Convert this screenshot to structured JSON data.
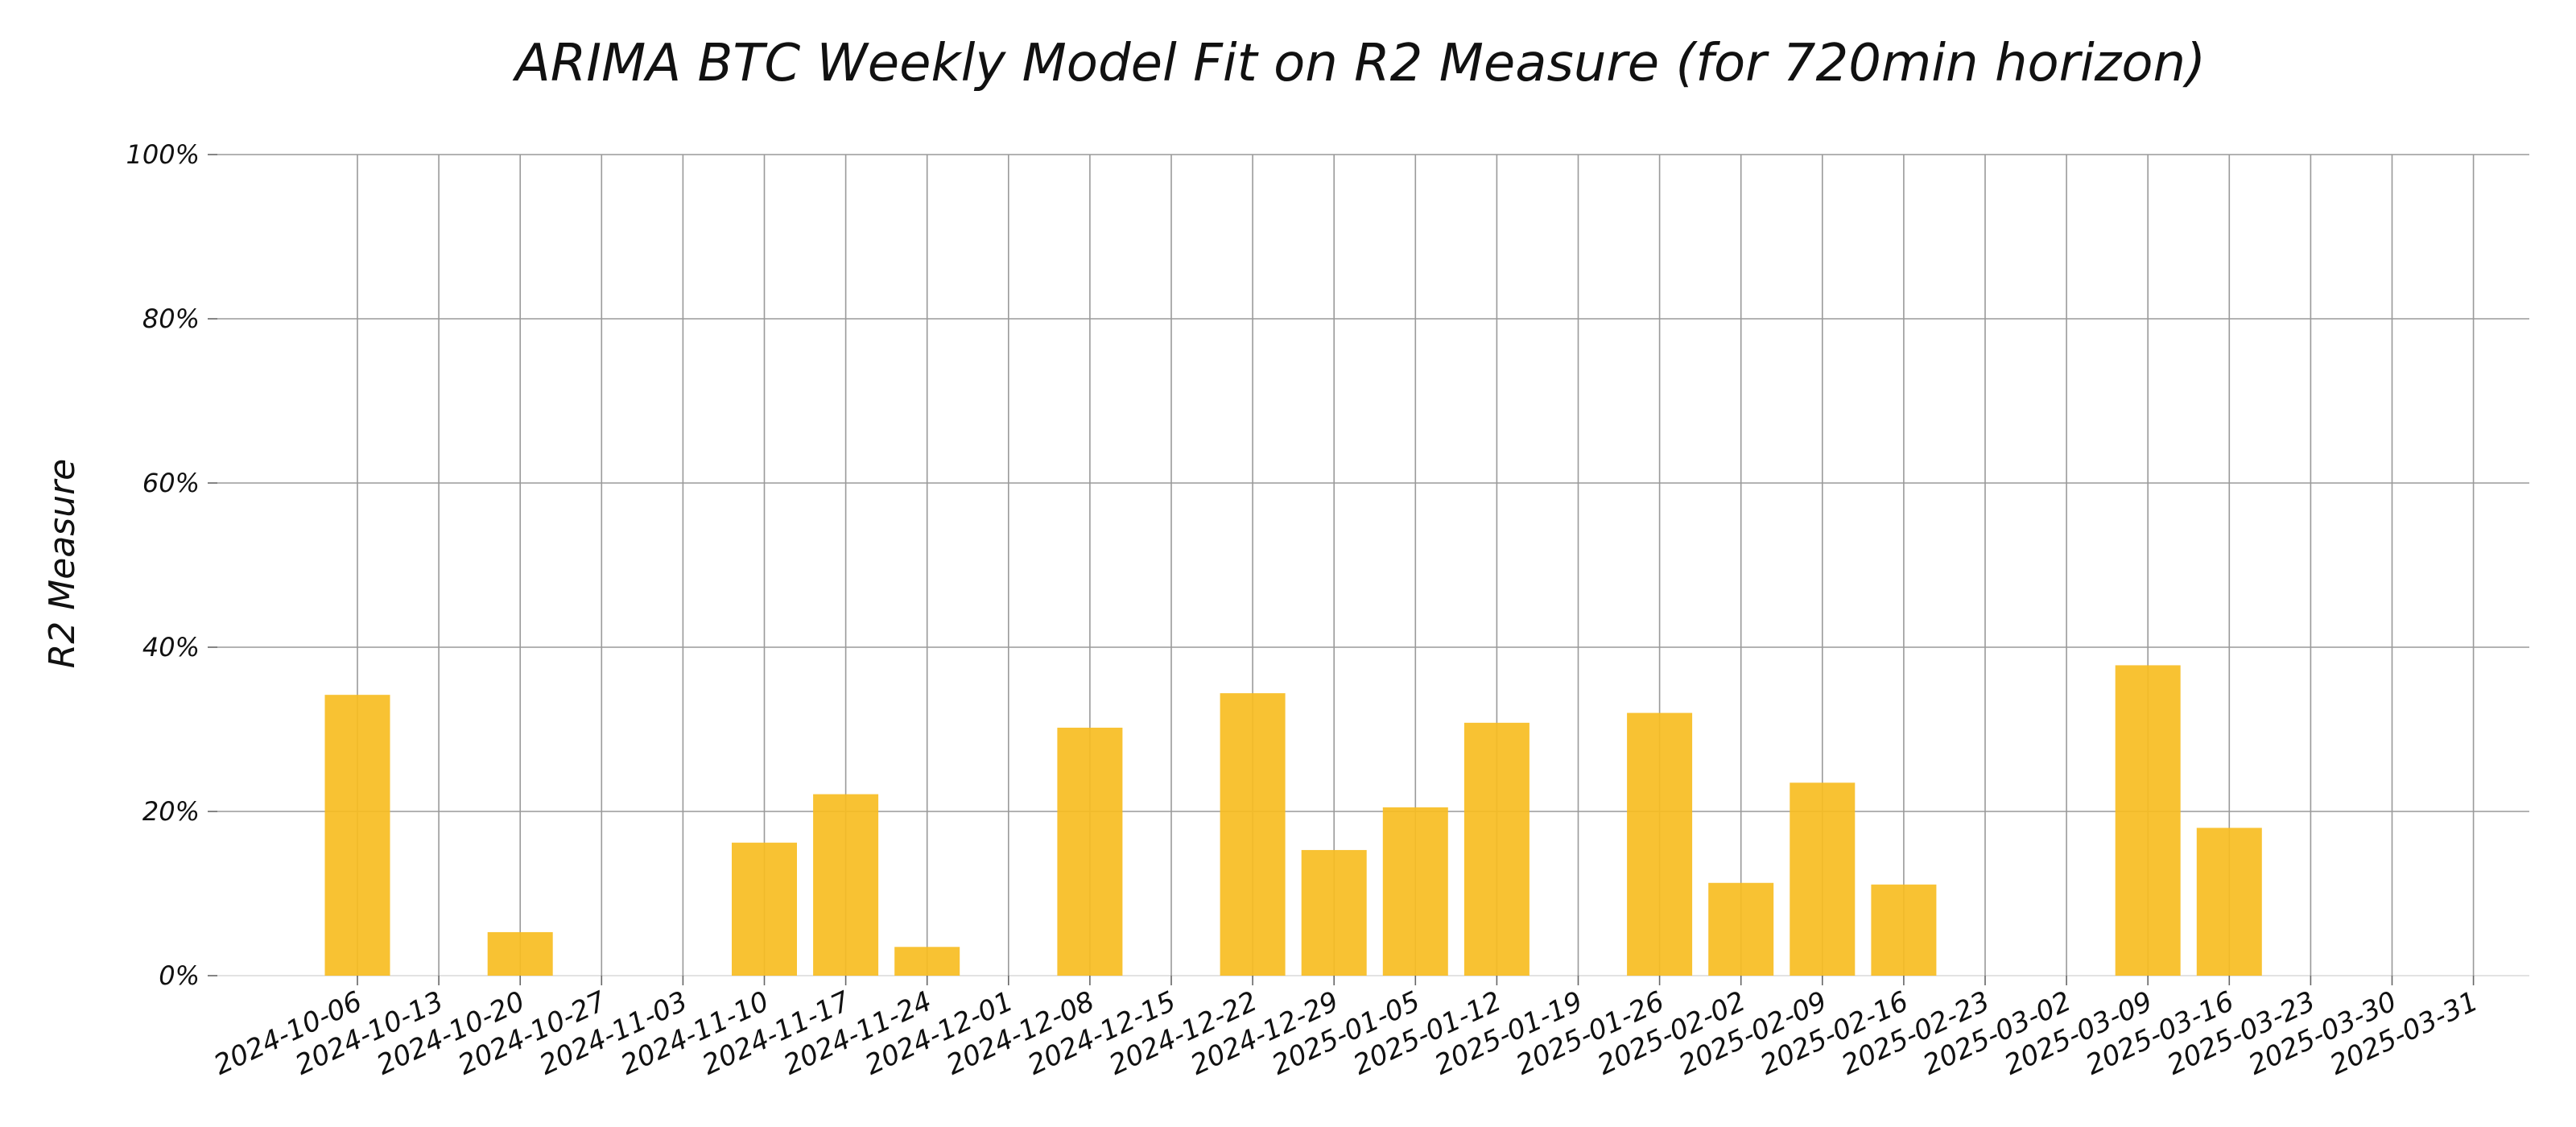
{
  "chart_data": {
    "type": "bar",
    "title": "ARIMA BTC Weekly Model Fit on R2 Measure (for 720min horizon)",
    "xlabel": "",
    "ylabel": "R2 Measure",
    "ylim": [
      0,
      100
    ],
    "y_ticks": [
      "0%",
      "20%",
      "40%",
      "60%",
      "80%",
      "100%"
    ],
    "y_tick_values": [
      0,
      20,
      40,
      60,
      80,
      100
    ],
    "grid": true,
    "bar_color": "#F7BD22",
    "categories": [
      "2024-10-06",
      "2024-10-13",
      "2024-10-20",
      "2024-10-27",
      "2024-11-03",
      "2024-11-10",
      "2024-11-17",
      "2024-11-24",
      "2024-12-01",
      "2024-12-08",
      "2024-12-15",
      "2024-12-22",
      "2024-12-29",
      "2025-01-05",
      "2025-01-12",
      "2025-01-19",
      "2025-01-26",
      "2025-02-02",
      "2025-02-09",
      "2025-02-16",
      "2025-02-23",
      "2025-03-02",
      "2025-03-09",
      "2025-03-16",
      "2025-03-23",
      "2025-03-30",
      "2025-03-31"
    ],
    "bars": [
      {
        "x": "2024-10-06",
        "value": 34.2
      },
      {
        "x": "2024-10-20",
        "value": 5.3
      },
      {
        "x": "2024-11-10",
        "value": 16.2
      },
      {
        "x": "2024-11-17",
        "value": 22.1
      },
      {
        "x": "2024-11-24",
        "value": 3.5
      },
      {
        "x": "2024-12-08",
        "value": 30.2
      },
      {
        "x": "2024-12-22",
        "value": 34.4
      },
      {
        "x": "2024-12-29",
        "value": 15.3
      },
      {
        "x": "2025-01-05",
        "value": 20.5
      },
      {
        "x": "2025-01-12",
        "value": 30.8
      },
      {
        "x": "2025-01-26",
        "value": 32.0
      },
      {
        "x": "2025-02-02",
        "value": 11.3
      },
      {
        "x": "2025-02-09",
        "value": 23.5
      },
      {
        "x": "2025-02-16",
        "value": 11.1
      },
      {
        "x": "2025-03-09",
        "value": 37.8
      },
      {
        "x": "2025-03-16",
        "value": 18.0
      }
    ]
  }
}
